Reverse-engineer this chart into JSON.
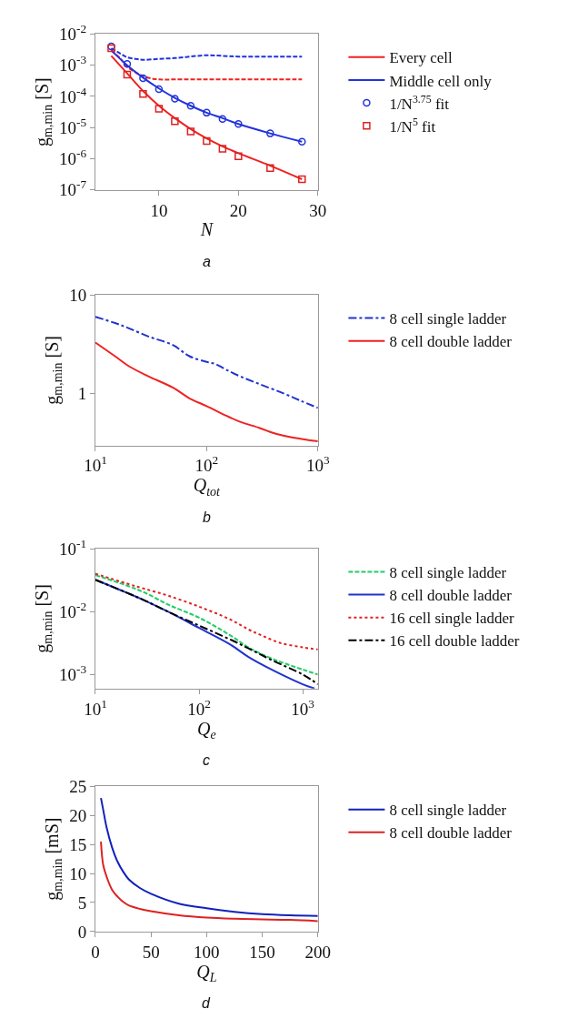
{
  "chart_data": [
    {
      "type": "line",
      "xlabel": "N",
      "ylabel": "g$_{m,min}$ [S]",
      "annotations": [
        "a"
      ],
      "log": "y",
      "legend": "right",
      "xlim": [
        2,
        30
      ],
      "xticks": [
        10,
        20,
        30
      ],
      "ylim": [
        1e-07,
        0.01
      ],
      "yticks": [
        {
          "value": 1e-07,
          "label": "10$^{-7}$"
        },
        {
          "value": 1e-06,
          "label": "10$^{-6}$"
        },
        {
          "value": 1e-05,
          "label": "10$^{-5}$"
        },
        {
          "value": 0.0001,
          "label": "10$^{-4}$"
        },
        {
          "value": 0.001,
          "label": "10$^{-3}$"
        },
        {
          "value": 0.01,
          "label": "10$^{-2}$"
        }
      ],
      "series": [
        {
          "name": "Every cell",
          "color": "#ee2222",
          "line_style": "solid",
          "x": [
            4,
            6,
            8,
            10,
            12,
            14,
            16,
            18,
            20,
            24,
            28
          ],
          "values": [
            0.002,
            0.00055,
            0.00015,
            5e-05,
            2e-05,
            9e-06,
            4.5e-06,
            2.5e-06,
            1.5e-06,
            6e-07,
            2.2e-07
          ]
        },
        {
          "color": "#ee2222",
          "line_style": "dashed",
          "x": [
            4,
            5,
            6,
            7,
            8,
            9,
            10,
            12,
            16,
            20,
            24,
            28
          ],
          "values": [
            0.003,
            0.0018,
            0.0009,
            0.0006,
            0.00045,
            0.00038,
            0.00035,
            0.00035,
            0.00035,
            0.00035,
            0.00035,
            0.00035
          ]
        },
        {
          "name": "Middle cell only",
          "color": "#2233dd",
          "line_style": "solid",
          "x": [
            4,
            6,
            8,
            10,
            12,
            14,
            16,
            18,
            20,
            24,
            28
          ],
          "values": [
            0.003,
            0.001,
            0.0004,
            0.00018,
            9e-05,
            5e-05,
            3e-05,
            2e-05,
            1.3e-05,
            6.5e-06,
            3.5e-06
          ]
        },
        {
          "color": "#2233dd",
          "line_style": "dashed",
          "x": [
            4,
            5,
            6,
            7,
            8,
            10,
            12,
            14,
            16,
            18,
            20,
            24,
            28
          ],
          "values": [
            0.0035,
            0.0025,
            0.0018,
            0.0016,
            0.0015,
            0.0016,
            0.0017,
            0.0019,
            0.0021,
            0.002,
            0.0019,
            0.0019,
            0.0019
          ]
        },
        {
          "type": "scatter",
          "marker": "circle",
          "name": "1/N$^{3.75}$ fit",
          "color": "#2233dd",
          "x": [
            4,
            6,
            8,
            10,
            12,
            14,
            16,
            18,
            20,
            24,
            28
          ],
          "values": [
            0.004,
            0.0011,
            0.00038,
            0.00017,
            8.5e-05,
            5e-05,
            3e-05,
            1.9e-05,
            1.3e-05,
            6.5e-06,
            3.5e-06
          ]
        },
        {
          "type": "scatter",
          "marker": "square",
          "name": "1/N$^{5}$ fit",
          "color": "#dd2222",
          "x": [
            4,
            6,
            8,
            10,
            12,
            14,
            16,
            18,
            20,
            24,
            28
          ],
          "values": [
            0.0035,
            0.0005,
            0.00012,
            4e-05,
            1.6e-05,
            7.5e-06,
            3.7e-06,
            2.1e-06,
            1.2e-06,
            5e-07,
            2.2e-07
          ]
        }
      ]
    },
    {
      "type": "line",
      "xlabel": "Q$_{tot}$",
      "ylabel": "g$_{m,min}$ [S]",
      "annotations": [
        "b"
      ],
      "log": "xy",
      "legend": "right",
      "xlim": [
        10,
        1000
      ],
      "xticks": [
        {
          "value": 10,
          "label": "10$^{1}$"
        },
        {
          "value": 100,
          "label": "10$^{2}$"
        },
        {
          "value": 1000,
          "label": "10$^{3}$"
        }
      ],
      "ylim": [
        0.3,
        10
      ],
      "yticks": [
        1,
        10
      ],
      "series": [
        {
          "name": "8 cell single ladder",
          "color": "#2233cc",
          "line_style": "dashdot",
          "x": [
            10,
            15,
            20,
            30,
            50,
            70,
            100,
            120,
            150,
            200,
            300,
            500,
            700,
            1000
          ],
          "values": [
            6,
            5.2,
            4.6,
            3.8,
            3.1,
            2.4,
            2.1,
            2,
            1.75,
            1.5,
            1.25,
            1,
            0.85,
            0.72
          ]
        },
        {
          "name": "8 cell double ladder",
          "color": "#ee2222",
          "line_style": "solid",
          "x": [
            10,
            15,
            20,
            30,
            50,
            70,
            100,
            150,
            200,
            300,
            400,
            600,
            1000
          ],
          "values": [
            3.3,
            2.4,
            1.9,
            1.5,
            1.15,
            0.9,
            0.75,
            0.6,
            0.52,
            0.45,
            0.4,
            0.36,
            0.33
          ]
        }
      ]
    },
    {
      "type": "line",
      "xlabel": "Q$_{e}$",
      "ylabel": "g$_{m,min}$ [S]",
      "annotations": [
        "c"
      ],
      "log": "xy",
      "legend": "right",
      "xlim": [
        10,
        1400
      ],
      "xticks": [
        {
          "value": 10,
          "label": "10$^{1}$"
        },
        {
          "value": 100,
          "label": "10$^{2}$"
        },
        {
          "value": 1000,
          "label": "10$^{3}$"
        }
      ],
      "ylim": [
        0.0006,
        0.1
      ],
      "yticks": [
        {
          "value": 0.001,
          "label": "10$^{-3}$"
        },
        {
          "value": 0.01,
          "label": "10$^{-2}$"
        },
        {
          "value": 0.1,
          "label": "10$^{-1}$"
        }
      ],
      "series": [
        {
          "name": "8 cell single ladder",
          "color": "#22cc66",
          "line_style": "dashed",
          "x": [
            10,
            20,
            30,
            50,
            100,
            200,
            300,
            500,
            1000,
            1400
          ],
          "values": [
            0.038,
            0.026,
            0.02,
            0.013,
            0.008,
            0.0042,
            0.0027,
            0.0018,
            0.0012,
            0.001
          ]
        },
        {
          "name": "8 cell double ladder",
          "color": "#2233cc",
          "line_style": "solid",
          "x": [
            10,
            20,
            30,
            50,
            100,
            200,
            300,
            500,
            1000,
            1300
          ],
          "values": [
            0.032,
            0.02,
            0.015,
            0.01,
            0.0055,
            0.003,
            0.0019,
            0.0012,
            0.0007,
            0.0006
          ]
        },
        {
          "name": "16 cell single ladder",
          "color": "#dd2222",
          "line_style": "dotted",
          "x": [
            10,
            20,
            30,
            50,
            100,
            200,
            300,
            400,
            600,
            1000,
            1400
          ],
          "values": [
            0.04,
            0.028,
            0.023,
            0.018,
            0.012,
            0.0075,
            0.0052,
            0.0042,
            0.0032,
            0.0027,
            0.0025
          ]
        },
        {
          "name": "16 cell double ladder",
          "color": "#000000",
          "line_style": "dashdot",
          "x": [
            10,
            20,
            30,
            50,
            100,
            200,
            300,
            500,
            1000,
            1400
          ],
          "values": [
            0.032,
            0.02,
            0.015,
            0.01,
            0.006,
            0.0036,
            0.0026,
            0.0017,
            0.001,
            0.0007
          ]
        }
      ]
    },
    {
      "type": "line",
      "xlabel": "Q$_{L}$",
      "ylabel": "g$_{m,min}$ [mS]",
      "annotations": [
        "d"
      ],
      "legend": "right",
      "xlim": [
        0,
        200
      ],
      "xticks": [
        0,
        50,
        100,
        150,
        200
      ],
      "ylim": [
        0,
        25
      ],
      "yticks": [
        0,
        5,
        10,
        15,
        20,
        25
      ],
      "series": [
        {
          "name": "8 cell single ladder",
          "color": "#1122bb",
          "line_style": "solid",
          "x": [
            5,
            7,
            10,
            15,
            20,
            25,
            30,
            40,
            50,
            75,
            100,
            125,
            150,
            175,
            200
          ],
          "values": [
            23,
            21,
            18,
            14.5,
            12,
            10.3,
            9,
            7.5,
            6.5,
            4.8,
            4,
            3.4,
            3,
            2.8,
            2.7
          ]
        },
        {
          "name": "8 cell double ladder",
          "color": "#dd2222",
          "line_style": "solid",
          "x": [
            5,
            7,
            10,
            15,
            20,
            25,
            30,
            40,
            50,
            75,
            100,
            125,
            150,
            175,
            200
          ],
          "values": [
            15.5,
            11.5,
            9.5,
            7.2,
            6,
            5.1,
            4.5,
            3.9,
            3.5,
            2.8,
            2.4,
            2.2,
            2.1,
            2,
            1.8
          ]
        }
      ]
    }
  ]
}
